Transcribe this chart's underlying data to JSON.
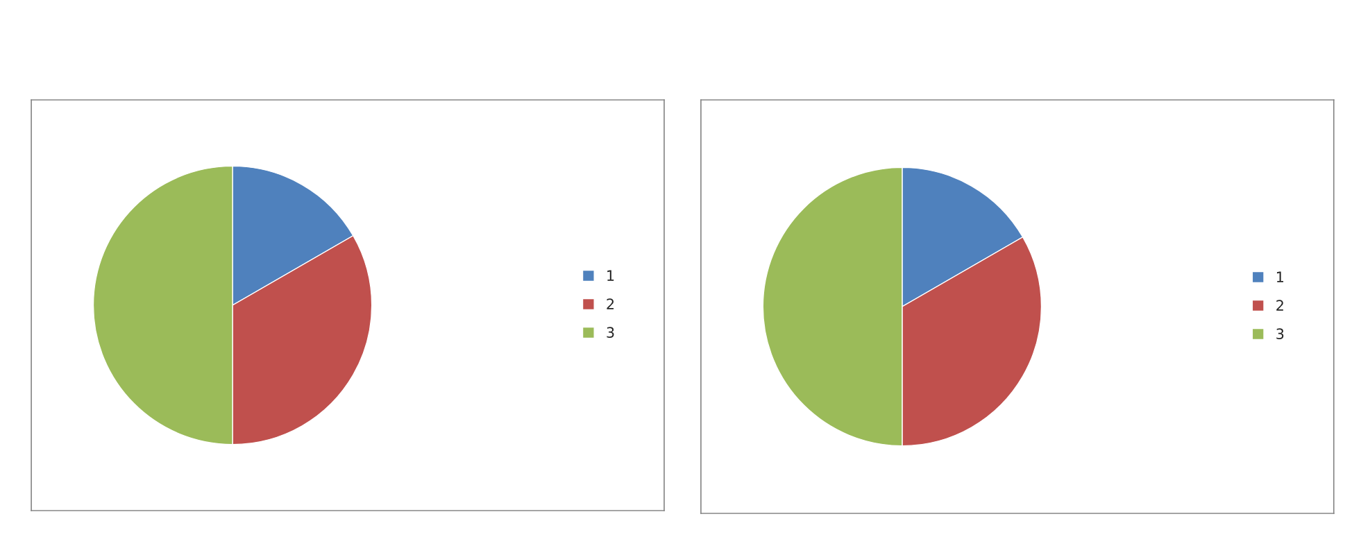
{
  "chart_data": [
    {
      "type": "pie",
      "categories": [
        "1",
        "2",
        "3"
      ],
      "values": [
        16.67,
        33.33,
        50
      ],
      "colors": [
        "#4f81bd",
        "#c0504d",
        "#9bbb59"
      ],
      "legend": "right"
    },
    {
      "type": "pie",
      "categories": [
        "1",
        "2",
        "3"
      ],
      "values": [
        16.67,
        33.33,
        50
      ],
      "colors": [
        "#4f81bd",
        "#c0504d",
        "#9bbb59"
      ],
      "legend": "right"
    }
  ]
}
